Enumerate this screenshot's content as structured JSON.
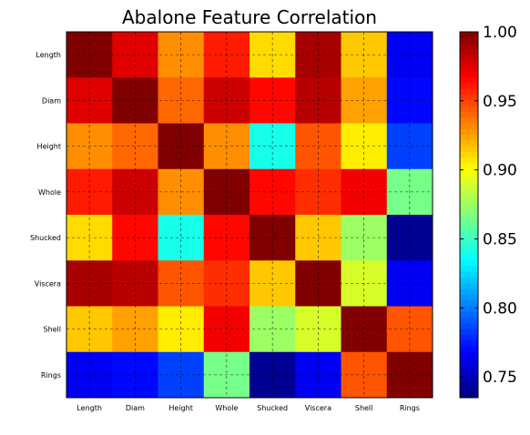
{
  "chart_data": {
    "type": "heatmap",
    "title": "Abalone Feature Correlation",
    "x_labels": [
      "Length",
      "Diam",
      "Height",
      "Whole",
      "Shucked",
      "Viscera",
      "Shell",
      "Rings"
    ],
    "y_labels": [
      "Length",
      "Diam",
      "Height",
      "Whole",
      "Shucked",
      "Viscera",
      "Shell",
      "Rings"
    ],
    "values": [
      [
        1.0,
        0.975,
        0.93,
        0.96,
        0.91,
        0.99,
        0.915,
        0.765
      ],
      [
        0.975,
        1.0,
        0.94,
        0.98,
        0.965,
        0.985,
        0.925,
        0.77
      ],
      [
        0.93,
        0.94,
        1.0,
        0.93,
        0.84,
        0.945,
        0.905,
        0.785
      ],
      [
        0.96,
        0.98,
        0.93,
        1.0,
        0.965,
        0.955,
        0.97,
        0.865
      ],
      [
        0.91,
        0.965,
        0.84,
        0.965,
        1.0,
        0.915,
        0.875,
        0.74
      ],
      [
        0.99,
        0.985,
        0.945,
        0.955,
        0.915,
        1.0,
        0.89,
        0.765
      ],
      [
        0.915,
        0.925,
        0.905,
        0.97,
        0.875,
        0.89,
        1.0,
        0.945
      ],
      [
        0.765,
        0.77,
        0.785,
        0.865,
        0.74,
        0.765,
        0.945,
        1.0
      ]
    ],
    "colorbar": {
      "min": 0.735,
      "max": 1.0,
      "ticks": [
        "1.00",
        "0.95",
        "0.90",
        "0.85",
        "0.80",
        "0.75"
      ],
      "tick_values": [
        1.0,
        0.95,
        0.9,
        0.85,
        0.8,
        0.75
      ]
    },
    "colormap": "jet",
    "grid": true,
    "grid_style": "dashed"
  }
}
